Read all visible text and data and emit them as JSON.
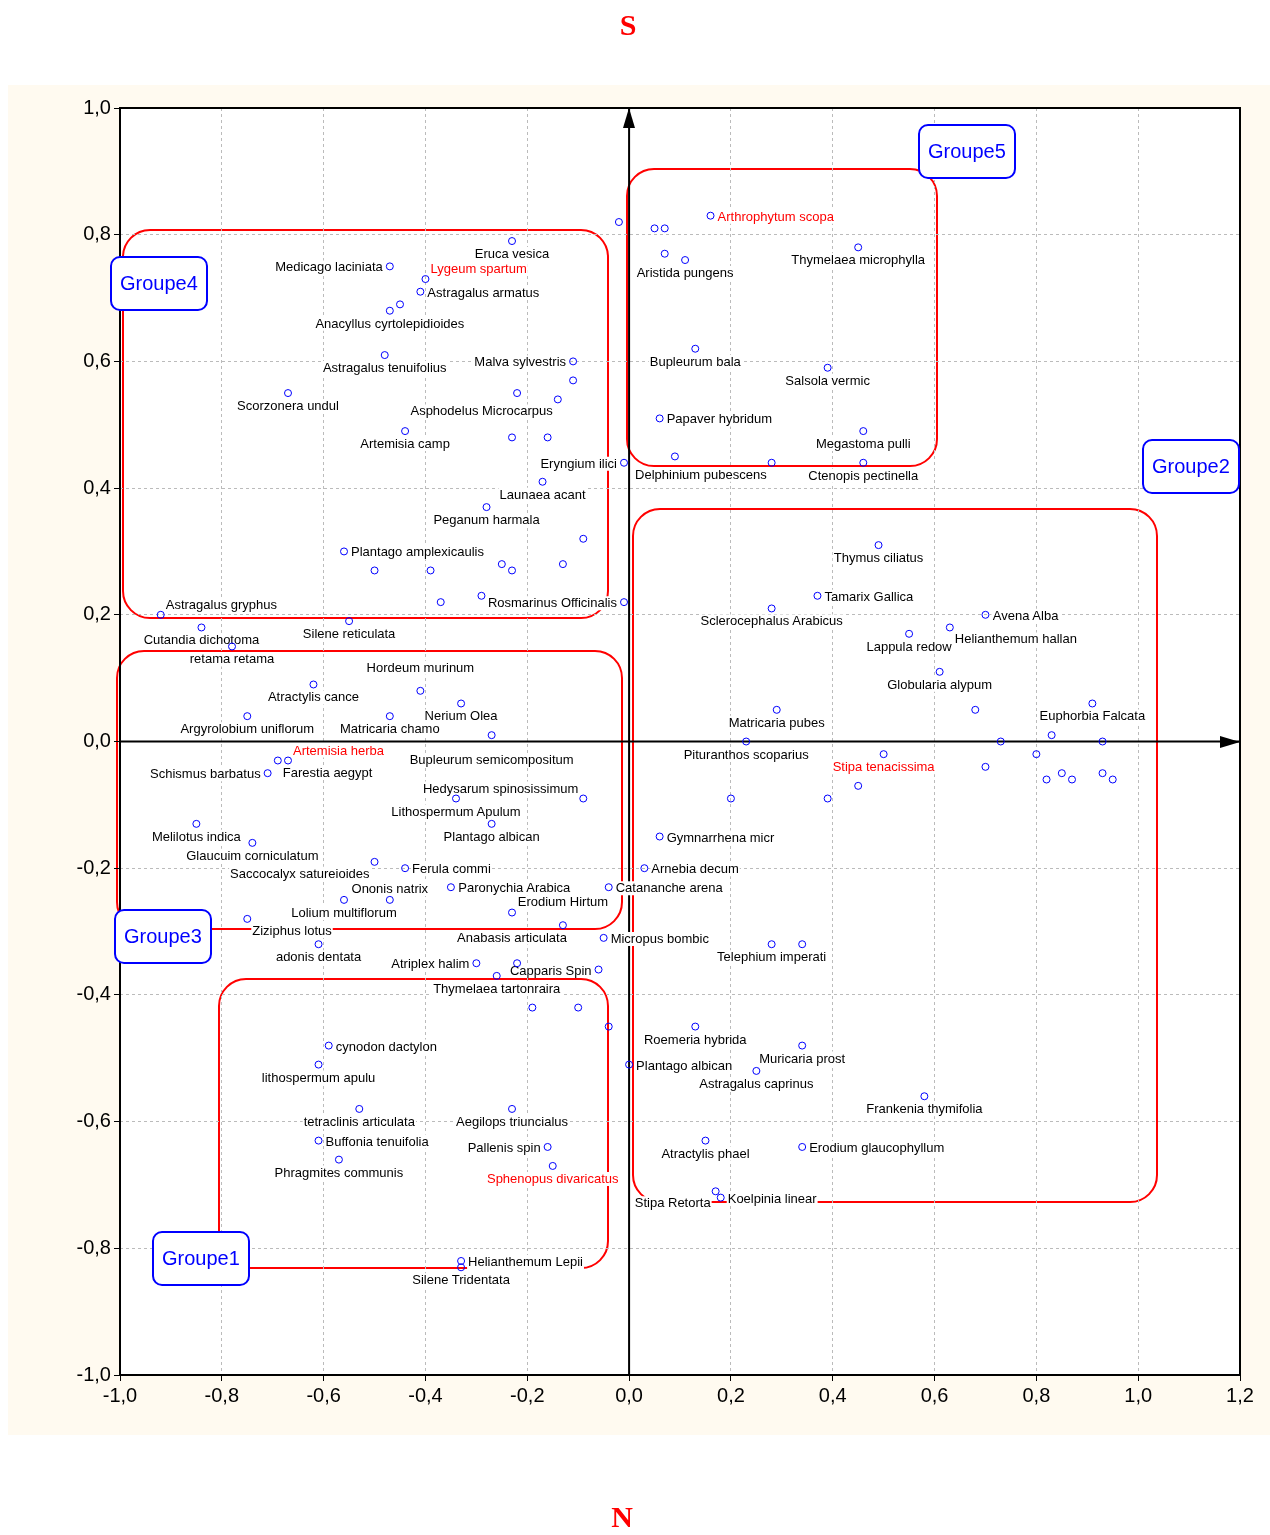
{
  "chart_data": {
    "type": "scatter",
    "xlim": [
      -1,
      1.2
    ],
    "ylim": [
      -1,
      1
    ],
    "xticks": [
      {
        "value": -1,
        "label": "-1,0"
      },
      {
        "value": -0.8,
        "label": "-0,8"
      },
      {
        "value": -0.6,
        "label": "-0,6"
      },
      {
        "value": -0.4,
        "label": "-0,4"
      },
      {
        "value": -0.2,
        "label": "-0,2"
      },
      {
        "value": 0,
        "label": "0,0"
      },
      {
        "value": 0.2,
        "label": "0,2"
      },
      {
        "value": 0.4,
        "label": "0,4"
      },
      {
        "value": 0.6,
        "label": "0,6"
      },
      {
        "value": 0.8,
        "label": "0,8"
      },
      {
        "value": 1,
        "label": "1,0"
      },
      {
        "value": 1.2,
        "label": "1,2"
      }
    ],
    "yticks": [
      {
        "value": -1,
        "label": "-1,0"
      },
      {
        "value": -0.8,
        "label": "-0,8"
      },
      {
        "value": -0.6,
        "label": "-0,6"
      },
      {
        "value": -0.4,
        "label": "-0,4"
      },
      {
        "value": -0.2,
        "label": "-0,2"
      },
      {
        "value": 0,
        "label": "0,0"
      },
      {
        "value": 0.2,
        "label": "0,2"
      },
      {
        "value": 0.4,
        "label": "0,4"
      },
      {
        "value": 0.6,
        "label": "0,6"
      },
      {
        "value": 0.8,
        "label": "0,8"
      },
      {
        "value": 1,
        "label": "1,0"
      }
    ],
    "grid": true,
    "marker": "circle",
    "series": [
      {
        "color": "#0000ff",
        "x": [
          -0.23,
          -0.47,
          -0.41,
          -0.45,
          -0.47,
          -0.48,
          -0.67,
          -0.44,
          -0.22,
          -0.14,
          -0.11,
          -0.11,
          0.13,
          0.39,
          0.06,
          -0.23,
          -0.16,
          0.46,
          0.46,
          0.28,
          0.09,
          -0.01,
          -0.17,
          -0.28,
          -0.56,
          -0.09,
          -0.13,
          -0.23,
          -0.25,
          -0.29,
          -0.37,
          -0.39,
          -0.5,
          -0.01,
          -0.55,
          -0.92,
          -0.84,
          -0.78,
          0.49,
          0.37,
          0.28,
          0.7,
          0.63,
          0.55,
          0.61,
          0.91,
          0.29,
          0.23,
          0.45,
          0.39,
          0.2,
          0.82,
          0.85,
          0.87,
          0.93,
          0.95,
          0.8,
          0.7,
          0.73,
          0.93,
          0.68,
          0.83,
          -0.62,
          -0.41,
          -0.33,
          -0.75,
          -0.47,
          -0.27,
          -0.69,
          -0.71,
          -0.34,
          -0.09,
          -0.27,
          -0.85,
          -0.74,
          0.06,
          -0.5,
          -0.44,
          0.03,
          -0.35,
          -0.04,
          -0.56,
          -0.47,
          -0.75,
          -0.23,
          -0.13,
          -0.05,
          -0.61,
          -0.3,
          -0.26,
          -0.22,
          -0.06,
          0.28,
          0.34,
          -0.19,
          -0.1,
          -0.04,
          0.13,
          0.34,
          0,
          0.25,
          0.58,
          0.15,
          0.34,
          0.17,
          0.18,
          -0.59,
          -0.61,
          -0.53,
          -0.23,
          -0.61,
          -0.57,
          -0.16,
          -0.33,
          -0.33,
          0.45,
          0.11,
          0.07,
          -0.02,
          0.05,
          0.07
        ],
        "values": [
          0.79,
          0.75,
          0.71,
          0.69,
          0.68,
          0.61,
          0.55,
          0.49,
          0.55,
          0.54,
          0.6,
          0.57,
          0.62,
          0.59,
          0.51,
          0.48,
          0.48,
          0.49,
          0.44,
          0.44,
          0.45,
          0.44,
          0.41,
          0.37,
          0.3,
          0.32,
          0.28,
          0.27,
          0.28,
          0.23,
          0.22,
          0.27,
          0.27,
          0.22,
          0.19,
          0.2,
          0.18,
          0.15,
          0.31,
          0.23,
          0.21,
          0.2,
          0.18,
          0.17,
          0.11,
          0.06,
          0.05,
          0,
          -0.07,
          -0.09,
          -0.09,
          -0.06,
          -0.05,
          -0.06,
          -0.05,
          -0.06,
          -0.02,
          -0.04,
          0,
          0,
          0.05,
          0.01,
          0.09,
          0.08,
          0.06,
          0.04,
          0.04,
          0.01,
          -0.03,
          -0.05,
          -0.09,
          -0.09,
          -0.13,
          -0.13,
          -0.16,
          -0.15,
          -0.19,
          -0.2,
          -0.2,
          -0.23,
          -0.23,
          -0.25,
          -0.25,
          -0.28,
          -0.27,
          -0.29,
          -0.31,
          -0.32,
          -0.35,
          -0.37,
          -0.35,
          -0.36,
          -0.32,
          -0.32,
          -0.42,
          -0.42,
          -0.45,
          -0.45,
          -0.48,
          -0.51,
          -0.52,
          -0.56,
          -0.63,
          -0.64,
          -0.71,
          -0.72,
          -0.48,
          -0.51,
          -0.58,
          -0.58,
          -0.63,
          -0.66,
          -0.64,
          -0.82,
          -0.83,
          0.78,
          0.76,
          0.77,
          0.82,
          0.81,
          0.81
        ],
        "value_labels": [
          "Eruca vesica",
          "Medicago laciniata",
          "Astragalus armatus",
          null,
          "Anacyllus cyrtolepidioides",
          "Astragalus tenuifolius",
          "Scorzonera undul",
          "Artemisia camp",
          null,
          "Asphodelus Microcarpus",
          "Malva sylvestris",
          null,
          "Bupleurum bala",
          "Salsola vermic",
          "Papaver hybridum",
          null,
          null,
          "Megastoma pulli",
          "Ctenopis pectinella",
          "Delphinium pubescens",
          null,
          "Eryngium ilici",
          "Launaea acant",
          "Peganum harmala",
          "Plantago amplexicaulis",
          null,
          null,
          null,
          null,
          null,
          null,
          null,
          null,
          "Rosmarinus Officinalis",
          "Silene reticulata",
          "Astragalus gryphus",
          "Cutandia dichotoma",
          "retama retama",
          "Thymus ciliatus",
          "Tamarix Gallica",
          "Sclerocephalus Arabicus",
          "Avena Alba",
          "Helianthemum hallan",
          "Lappula redow",
          "Globularia alypum",
          "Euphorbia Falcata",
          "Matricaria pubes",
          "Pituranthos scoparius",
          null,
          null,
          null,
          null,
          null,
          null,
          null,
          null,
          null,
          null,
          null,
          null,
          null,
          null,
          "Atractylis cance",
          "Hordeum murinum",
          "Nerium Olea",
          "Argyrolobium uniflorum",
          "Matricaria chamo",
          "Bupleurum semicompositum",
          "Farestia aegypt",
          "Schismus barbatus",
          "Lithospermum Apulum",
          "Hedysarum spinosissimum",
          "Plantago albican",
          "Melilotus indica",
          "Glaucuim corniculatum",
          "Gymnarrhena micr",
          "Saccocalyx satureioides",
          "Ferula commi",
          "Arnebia decum",
          "Paronychia Arabica",
          "Catananche arena",
          "Lolium multiflorum",
          "Ononis natrix",
          "Ziziphus lotus",
          "Anabasis articulata",
          "Erodium Hirtum",
          "Micropus bombic",
          "adonis dentata",
          "Atriplex halim",
          "Thymelaea tartonraira",
          null,
          "Capparis Spin",
          "Telephium imperati",
          null,
          null,
          null,
          null,
          "Roemeria hybrida",
          "Muricaria prost",
          "Plantago albican",
          "Astragalus caprinus",
          "Frankenia thymifolia",
          "Atractylis phael",
          "Erodium glaucophyllum",
          "Stipa Retorta",
          "Koelpinia linear",
          "cynodon dactylon",
          "lithospermum apulu",
          "tetraclinis articulata",
          "Aegilops triuncialus",
          "Buffonia tenuifolia",
          "Phragmites communis",
          "Pallenis spin",
          "Helianthemum Lepii",
          "Silene Tridentata",
          "Thymelaea microphylla",
          "Aristida pungens",
          null,
          null,
          null,
          null
        ]
      },
      {
        "color": "#0000ff",
        "x": [
          0.16,
          -0.4,
          -0.67,
          0.5,
          -0.15
        ],
        "values": [
          0.83,
          0.73,
          -0.03,
          -0.02,
          -0.67
        ],
        "value_labels": [
          "Arthrophytum scopa",
          "Lygeum spartum",
          "Artemisia herba",
          "Stipa tenacissima",
          "Sphenopus divaricatus"
        ]
      }
    ],
    "annotations": [
      "S",
      "N",
      "Groupe5",
      "Groupe4",
      "Groupe2",
      "Groupe3",
      "Groupe1"
    ]
  }
}
